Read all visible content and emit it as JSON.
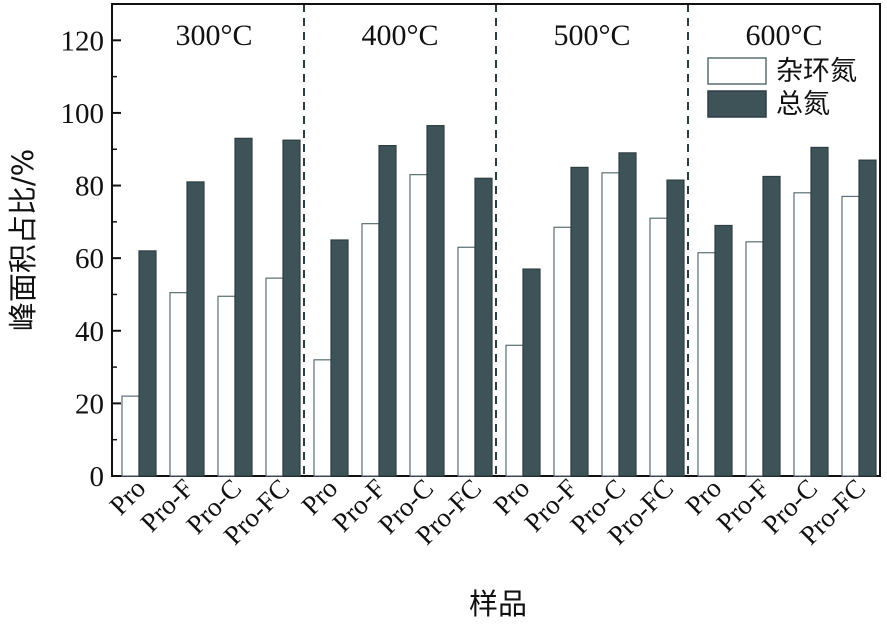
{
  "chart_data": {
    "type": "bar",
    "title": "",
    "xlabel": "样品",
    "ylabel": "峰面积占比/%",
    "ylim": [
      0,
      130
    ],
    "yticks": [
      0,
      20,
      40,
      60,
      80,
      100,
      120
    ],
    "grid": false,
    "legend_position": "top-right",
    "groups": [
      "300°C",
      "400°C",
      "500°C",
      "600°C"
    ],
    "categories": [
      "Pro",
      "Pro-F",
      "Pro-C",
      "Pro-FC"
    ],
    "series": [
      {
        "name": "杂环氮",
        "color": "#ffffff",
        "values": [
          [
            22,
            50.5,
            49.5,
            54.5
          ],
          [
            32,
            69.5,
            83,
            63
          ],
          [
            36,
            68.5,
            83.5,
            71
          ],
          [
            61.5,
            64.5,
            78,
            77
          ]
        ]
      },
      {
        "name": "总氮",
        "color": "#3d5358",
        "values": [
          [
            62,
            81,
            93,
            92.5
          ],
          [
            65,
            91,
            96.5,
            82
          ],
          [
            57,
            85,
            89,
            81.5
          ],
          [
            69,
            82.5,
            90.5,
            87
          ]
        ]
      }
    ]
  }
}
